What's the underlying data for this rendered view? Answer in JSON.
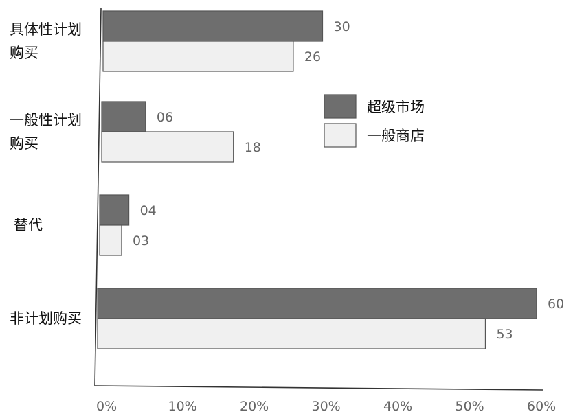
{
  "chart_data": {
    "type": "bar",
    "orientation": "horizontal",
    "categories": [
      [
        "具体性计划",
        "购买"
      ],
      [
        "一般性计划",
        "购买"
      ],
      [
        "替代"
      ],
      [
        "非计划购买"
      ]
    ],
    "series": [
      {
        "name": "超级市场",
        "color": "#6e6e6e",
        "values": [
          30,
          6,
          4,
          60
        ],
        "labels": [
          "30",
          "06",
          "04",
          "60"
        ]
      },
      {
        "name": "一般商店",
        "color": "#f0f0f0",
        "values": [
          26,
          18,
          3,
          53
        ],
        "labels": [
          "26",
          "18",
          "03",
          "53"
        ]
      }
    ],
    "x_ticks": [
      "0%",
      "10%",
      "20%",
      "30%",
      "40%",
      "50%",
      "60%"
    ],
    "xlim": [
      0,
      60
    ],
    "grid": false,
    "legend_position": "right, middle-upper"
  }
}
